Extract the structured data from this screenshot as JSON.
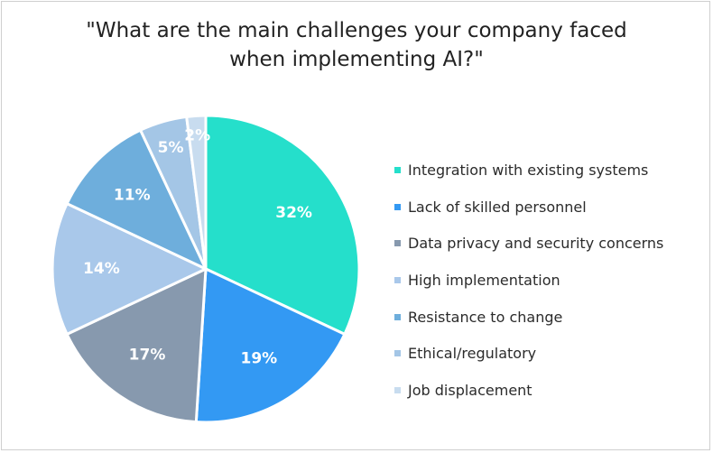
{
  "chart_data": {
    "type": "pie",
    "title": [
      "\"What are the main challenges your company faced",
      "when implementing AI?\""
    ],
    "categories": [
      "Integration with existing systems",
      "Lack of skilled personnel",
      "Data privacy and security concerns",
      "High implementation",
      "Resistance to change",
      "Ethical/regulatory",
      "Job displacement"
    ],
    "values": [
      32,
      19,
      17,
      14,
      11,
      5,
      2
    ],
    "data_labels": [
      "32%",
      "19%",
      "17%",
      "14%",
      "11%",
      "5%",
      "2%"
    ],
    "colors": [
      "#25dfcb",
      "#3399f3",
      "#8799ae",
      "#a9c8ea",
      "#6eaedc",
      "#a4c6e6",
      "#c8dcef"
    ],
    "label_color": "#ffffff",
    "legend_placement": "right"
  }
}
